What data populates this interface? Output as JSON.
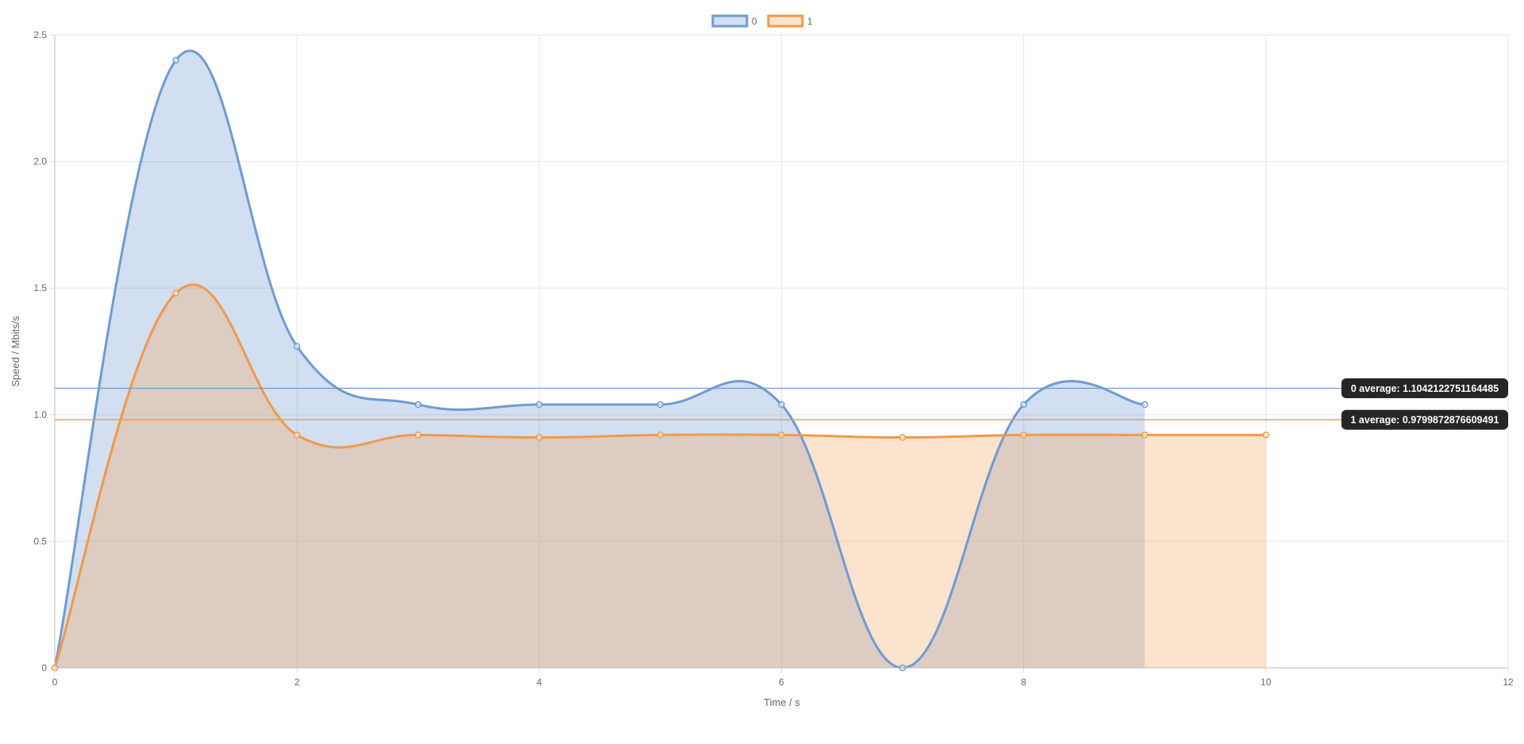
{
  "chart_data": {
    "type": "area",
    "xlabel": "Time / s",
    "ylabel": "Speed / Mbits/s",
    "xlim": [
      0,
      12
    ],
    "ylim": [
      0,
      2.5
    ],
    "x_ticks": [
      0,
      2,
      4,
      6,
      8,
      10,
      12
    ],
    "y_ticks": [
      0,
      0.5,
      1.0,
      1.5,
      2.0,
      2.5
    ],
    "y_tick_labels": [
      "0",
      "0.5",
      "1.0",
      "1.5",
      "2.0",
      "2.5"
    ],
    "grid": true,
    "legend_position": "top-center",
    "series": [
      {
        "name": "0",
        "color": "#6f9bd1",
        "fill": "rgba(111,155,209,0.32)",
        "x": [
          0,
          1,
          2,
          3,
          4,
          5,
          6,
          7,
          8,
          9
        ],
        "values": [
          0,
          2.4,
          1.27,
          1.04,
          1.04,
          1.04,
          1.04,
          0,
          1.04,
          1.04
        ]
      },
      {
        "name": "1",
        "color": "#f0994a",
        "fill": "rgba(244,161,88,0.30)",
        "x": [
          0,
          1,
          2,
          3,
          4,
          5,
          6,
          7,
          8,
          9,
          10
        ],
        "values": [
          0,
          1.48,
          0.92,
          0.92,
          0.91,
          0.92,
          0.92,
          0.91,
          0.92,
          0.92,
          0.92
        ]
      }
    ],
    "annotations": [
      {
        "series": "0",
        "value": 1.1042122751164485,
        "label": "0 average: 1.1042122751164485",
        "color": "#6f9bd1"
      },
      {
        "series": "1",
        "value": 0.9799872876609491,
        "label": "1 average: 0.9799872876609491",
        "color": "#f0994a"
      }
    ]
  }
}
